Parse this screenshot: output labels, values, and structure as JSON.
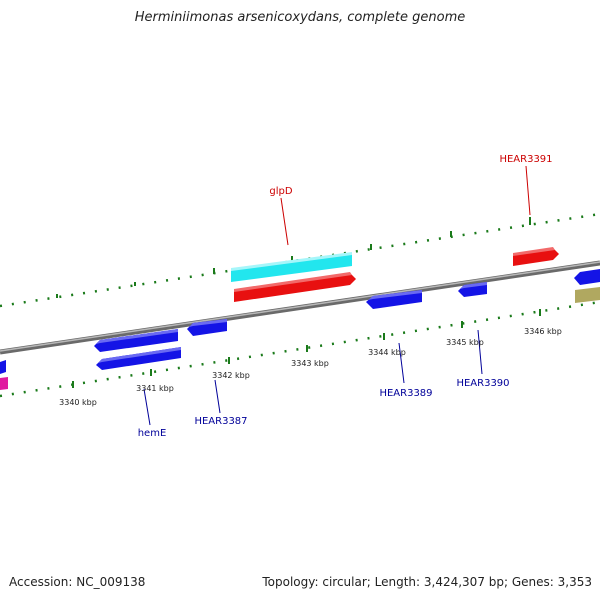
{
  "title": "Herminiimonas arsenicoxydans, complete genome",
  "accession_label": "Accession: NC_009138",
  "summary_label": "Topology: circular; Length: 3,424,307 bp; Genes: 3,353",
  "colors": {
    "backbone": "#8a8a8a",
    "ticks": "#1a7a1a",
    "forward_gene": "#e81010",
    "reverse_gene": "#1414e6",
    "highlight_gene": "#22e6ee",
    "rna_gene": "#e01aa0",
    "other_gene": "#b0a860",
    "forward_label": "#cc0000",
    "reverse_label": "#000099"
  },
  "axis": {
    "unit": "kbp",
    "ticks": [
      {
        "label": "3340 kbp",
        "value": 3340
      },
      {
        "label": "3341 kbp",
        "value": 3341
      },
      {
        "label": "3342 kbp",
        "value": 3342
      },
      {
        "label": "3343 kbp",
        "value": 3343
      },
      {
        "label": "3344 kbp",
        "value": 3344
      },
      {
        "label": "3345 kbp",
        "value": 3345
      },
      {
        "label": "3346 kbp",
        "value": 3346
      }
    ]
  },
  "gene_labels": [
    {
      "name": "glpD",
      "strand": "forward"
    },
    {
      "name": "HEAR3391",
      "strand": "forward"
    },
    {
      "name": "hemE",
      "strand": "reverse"
    },
    {
      "name": "HEAR3387",
      "strand": "reverse"
    },
    {
      "name": "HEAR3389",
      "strand": "reverse"
    },
    {
      "name": "HEAR3390",
      "strand": "reverse"
    }
  ]
}
